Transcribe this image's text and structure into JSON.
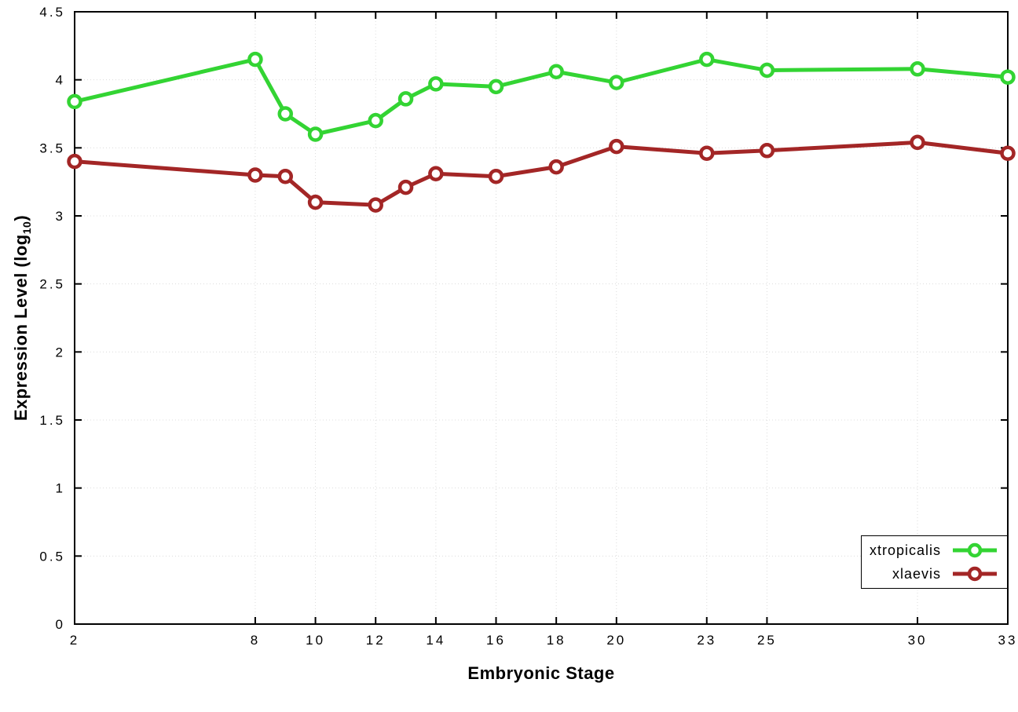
{
  "chart_data": {
    "type": "line",
    "title": "",
    "xlabel": "Embryonic Stage",
    "ylabel": "Expression Level (log10)",
    "ylabel_parts": {
      "pre": "Expression Level (log",
      "sub": "10",
      "post": ")"
    },
    "xlim": [
      2,
      33
    ],
    "ylim": [
      0,
      4.5
    ],
    "x_ticks": [
      2,
      8,
      10,
      12,
      14,
      16,
      18,
      20,
      23,
      25,
      30,
      33
    ],
    "y_ticks": [
      0,
      0.5,
      1,
      1.5,
      2,
      2.5,
      3,
      3.5,
      4,
      4.5
    ],
    "grid": true,
    "legend_position": "bottom-right",
    "x": [
      2,
      8,
      9,
      10,
      12,
      13,
      14,
      16,
      18,
      20,
      23,
      25,
      30,
      33
    ],
    "series": [
      {
        "name": "xtropicalis",
        "color": "#33d433",
        "values": [
          3.84,
          4.15,
          3.75,
          3.6,
          3.7,
          3.86,
          3.97,
          3.95,
          4.06,
          3.98,
          4.15,
          4.07,
          4.08,
          4.02
        ]
      },
      {
        "name": "xlaevis",
        "color": "#a32626",
        "values": [
          3.4,
          3.3,
          3.29,
          3.1,
          3.08,
          3.21,
          3.31,
          3.29,
          3.36,
          3.51,
          3.46,
          3.48,
          3.54,
          3.46
        ]
      }
    ]
  }
}
